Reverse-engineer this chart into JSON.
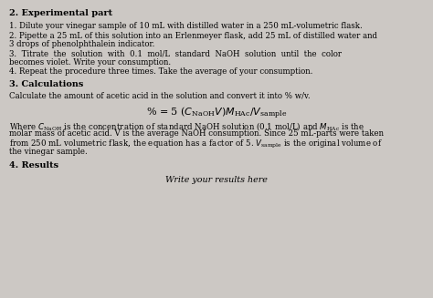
{
  "background_color": "#ccc8c4",
  "title_section": "2. Experimental part",
  "step1": "1. Dilute your vinegar sample of 10 mL with distilled water in a 250 mL-volumetric flask.",
  "step2a": "2. Pipette a 25 mL of this solution into an Erlenmeyer flask, add 25 mL of distilled water and",
  "step2b": "3 drops of phenolphthalein indicator.",
  "step3a": "3.  Titrate  the  solution  with  0.1  mol/L  standard  NaOH  solution  until  the  color",
  "step3b": "becomes violet. Write your consumption.",
  "step4": "4. Repeat the procedure three times. Take the average of your consumption.",
  "section3": "3. Calculations",
  "calc_desc": "Calculate the amount of acetic acid in the solution and convert it into % w/v.",
  "where_line2": "molar mass of acetic acid. V is the average NaOH consumption. Since 25 mL-parts were taken",
  "where_line3": "from 250 mL volumetric flask, the equation has a factor of 5. V",
  "where_line3b": " is the original volume of",
  "where_line4": "the vinegar sample.",
  "section4": "4. Results",
  "results_text": "Write your results here",
  "font_size_body": 6.2,
  "font_size_heading": 7.0,
  "font_size_formula": 7.5,
  "font_size_italic": 6.8
}
